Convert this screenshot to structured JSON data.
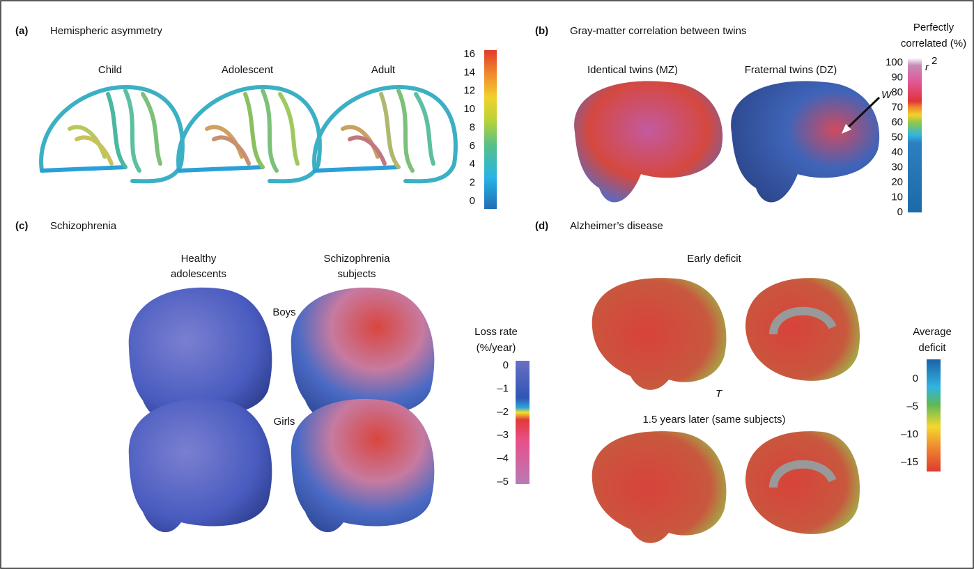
{
  "panels": [
    {
      "letter": "(a)",
      "title": "Hemispheric asymmetry",
      "labels": [
        "Child",
        "Adolescent",
        "Adult"
      ],
      "colorbar": {
        "ticks": [
          "16",
          "14",
          "12",
          "10",
          "8",
          "6",
          "4",
          "2",
          "0"
        ]
      }
    },
    {
      "letter": "(b)",
      "title": "Gray-matter correlation between twins",
      "labels": [
        "Identical twins (MZ)",
        "Fraternal twins (DZ)"
      ],
      "annotations": {
        "r2": "r",
        "r2_sup": "2",
        "arrow": "W"
      },
      "colorbar": {
        "title": [
          "Perfectly",
          "correlated (%)"
        ],
        "ticks": [
          "100",
          "90",
          "80",
          "70",
          "60",
          "50",
          "40",
          "30",
          "20",
          "10",
          "0"
        ]
      }
    },
    {
      "letter": "(c)",
      "title": "Schizophrenia",
      "columns": [
        [
          "Healthy",
          "adolescents"
        ],
        [
          "Schizophrenia",
          "subjects"
        ]
      ],
      "rows": [
        "Boys",
        "Girls"
      ],
      "colorbar": {
        "title": [
          "Loss rate",
          "(%/year)"
        ],
        "ticks": [
          "0",
          "–1",
          "–2",
          "–3",
          "–4",
          "–5"
        ]
      }
    },
    {
      "letter": "(d)",
      "title": "Alzheimer’s disease",
      "labels": [
        "Early deficit",
        "1.5 years later (same subjects)"
      ],
      "annotations": {
        "marker": "T"
      },
      "colorbar": {
        "title": [
          "Average",
          "deficit"
        ],
        "ticks": [
          "0",
          "–5",
          "–10",
          "–15"
        ]
      }
    }
  ]
}
